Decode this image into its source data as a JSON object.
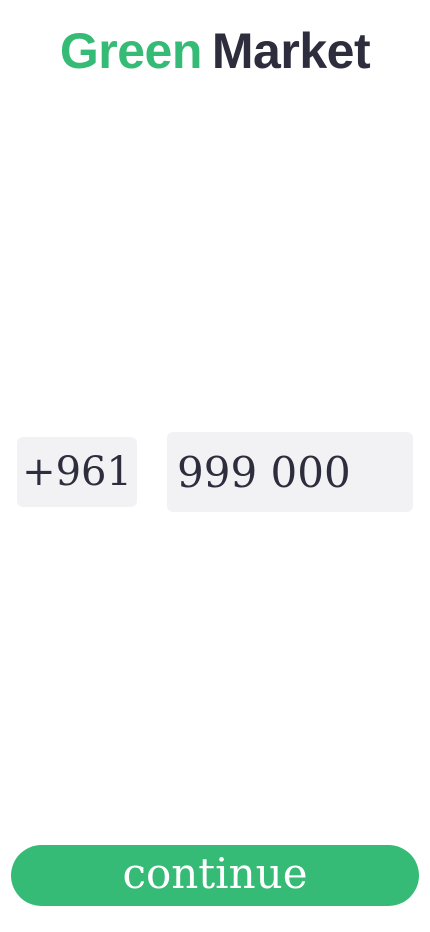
{
  "logo": {
    "part1": "Green",
    "part2": "Market",
    "colors": {
      "accent": "#36bb76",
      "dark": "#2d2d3d"
    }
  },
  "phone": {
    "country_code": "+961",
    "number": "999 000"
  },
  "actions": {
    "continue_label": "continue",
    "button_color": "#36bb76"
  },
  "colors": {
    "field_background": "#f2f2f4",
    "text": "#2d2d3d"
  }
}
